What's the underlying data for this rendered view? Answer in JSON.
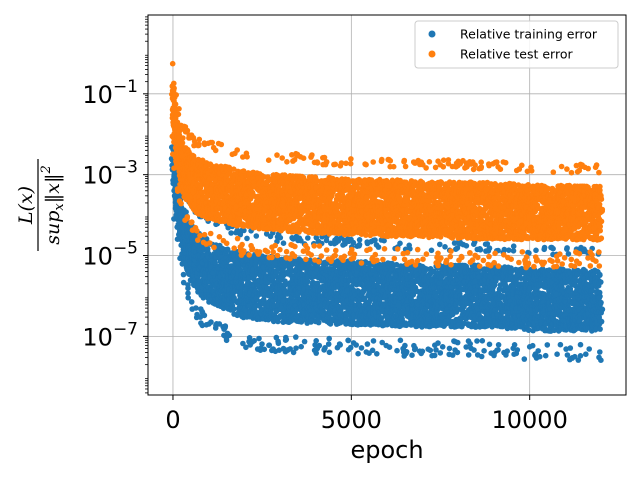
{
  "chart_data": {
    "type": "scatter",
    "xlabel": "epoch",
    "ylabel": {
      "numerator": "L(x)",
      "denominator": "sup",
      "denominator_sub": "x",
      "denominator_norm": "‖x‖",
      "denominator_sup": "2"
    },
    "xlim": [
      -700,
      12700
    ],
    "ylim_log10": [
      -8.45,
      0.95
    ],
    "y_scale": "log",
    "x_ticks": [
      0,
      5000,
      10000
    ],
    "x_tick_labels": [
      "0",
      "5000",
      "10000"
    ],
    "y_ticks_log10": [
      -7,
      -5,
      -3,
      -1
    ],
    "y_tick_labels": [
      {
        "base": "10",
        "exp": "−7"
      },
      {
        "base": "10",
        "exp": "−5"
      },
      {
        "base": "10",
        "exp": "−3"
      },
      {
        "base": "10",
        "exp": "−1"
      }
    ],
    "grid": true,
    "legend_position": "top-right",
    "series": [
      {
        "name": "Relative training error",
        "color": "#1f77b4",
        "epochs": [
          0,
          12000
        ],
        "envelope_log10": [
          {
            "x": 0,
            "low": -3.2,
            "high": -2.0
          },
          {
            "x": 100,
            "low": -4.3,
            "high": -2.6
          },
          {
            "x": 300,
            "low": -5.4,
            "high": -3.6
          },
          {
            "x": 600,
            "low": -6.1,
            "high": -4.1
          },
          {
            "x": 1000,
            "low": -6.5,
            "high": -4.3
          },
          {
            "x": 2000,
            "low": -6.9,
            "high": -4.6
          },
          {
            "x": 3000,
            "low": -7.0,
            "high": -4.7
          },
          {
            "x": 5000,
            "low": -7.05,
            "high": -4.8
          },
          {
            "x": 7000,
            "low": -7.1,
            "high": -4.9
          },
          {
            "x": 9000,
            "low": -7.1,
            "high": -4.9
          },
          {
            "x": 10000,
            "low": -7.2,
            "high": -5.0
          },
          {
            "x": 12000,
            "low": -7.2,
            "high": -5.0
          }
        ]
      },
      {
        "name": "Relative test error",
        "color": "#ff7f0e",
        "epochs": [
          0,
          12000
        ],
        "envelope_log10": [
          {
            "x": 0,
            "low": -1.8,
            "high": -0.45
          },
          {
            "x": 100,
            "low": -3.0,
            "high": -1.4
          },
          {
            "x": 300,
            "low": -3.8,
            "high": -2.0
          },
          {
            "x": 600,
            "low": -4.2,
            "high": -2.3
          },
          {
            "x": 1000,
            "low": -4.4,
            "high": -2.4
          },
          {
            "x": 2000,
            "low": -4.6,
            "high": -2.6
          },
          {
            "x": 3000,
            "low": -4.7,
            "high": -2.7
          },
          {
            "x": 5000,
            "low": -4.8,
            "high": -2.8
          },
          {
            "x": 7000,
            "low": -4.85,
            "high": -2.85
          },
          {
            "x": 9000,
            "low": -4.9,
            "high": -2.9
          },
          {
            "x": 10000,
            "low": -4.9,
            "high": -2.95
          },
          {
            "x": 12000,
            "low": -4.9,
            "high": -3.0
          }
        ]
      }
    ]
  }
}
